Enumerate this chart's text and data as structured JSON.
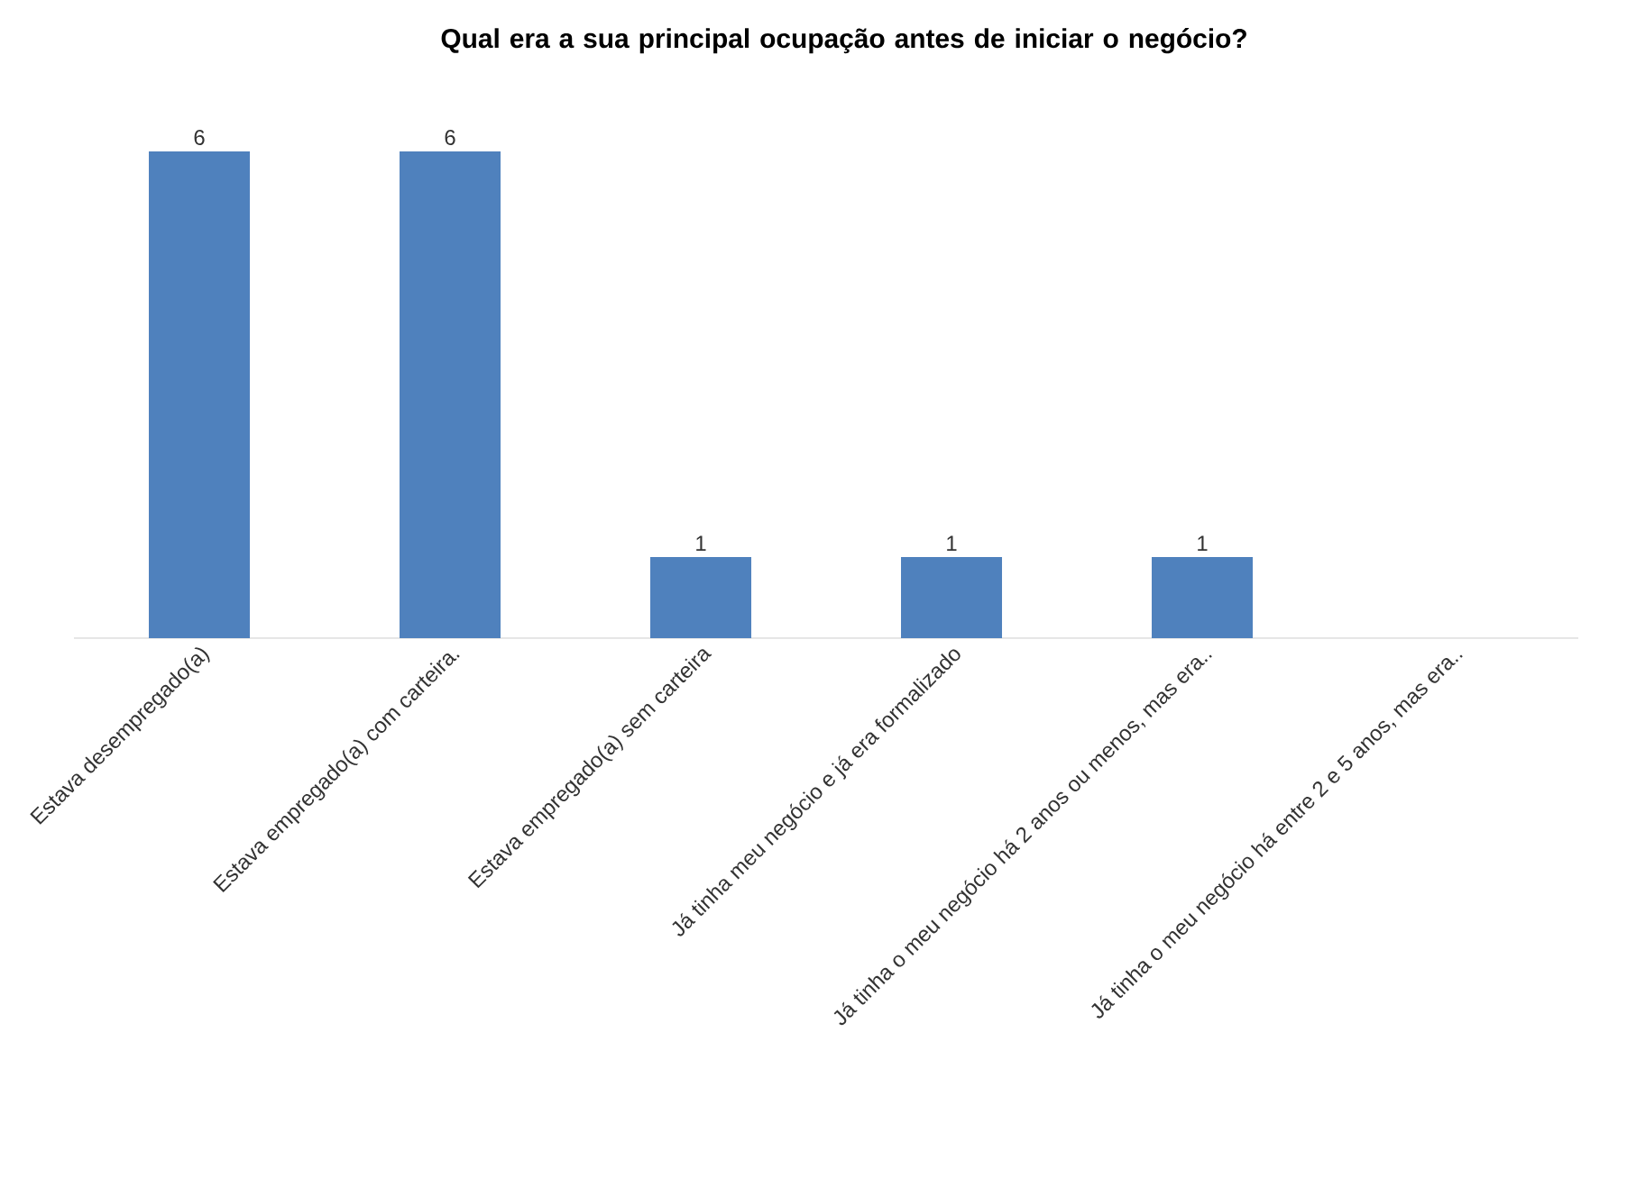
{
  "chart_data": {
    "type": "bar",
    "title": "Qual era a sua principal ocupação antes de iniciar o negócio?",
    "categories": [
      "Estava desempregado(a)",
      "Estava empregado(a) com carteira.",
      "Estava empregado(a) sem carteira",
      "Já tinha meu negócio e já era formalizado",
      "Já tinha o meu negócio há 2 anos ou menos, mas era..",
      "Já tinha o meu negócio há entre 2 e 5 anos, mas era.."
    ],
    "values": [
      6,
      6,
      1,
      1,
      1,
      0
    ],
    "value_labels": [
      "6",
      "6",
      "1",
      "1",
      "1",
      null
    ],
    "color": "#4f81bd"
  }
}
